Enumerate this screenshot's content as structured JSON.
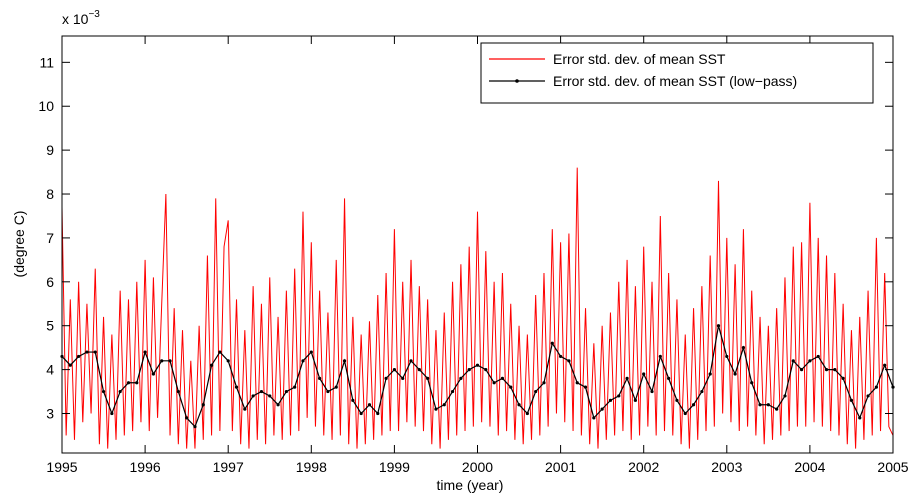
{
  "chart_data": {
    "type": "line",
    "xlabel": "time (year)",
    "ylabel": "(degree C)",
    "y_multiplier": {
      "base": "x 10",
      "exponent": "−3"
    },
    "xlim": [
      1995,
      2005
    ],
    "xticks": [
      1995,
      1996,
      1997,
      1998,
      1999,
      2000,
      2001,
      2002,
      2003,
      2004,
      2005
    ],
    "ylim": [
      2.1,
      11.6
    ],
    "yticks": [
      3,
      4,
      5,
      6,
      7,
      8,
      9,
      10,
      11
    ],
    "grid": false,
    "legend": "northeast",
    "series": [
      {
        "name": "Error std. dev. of mean SST",
        "color": "#ff0000",
        "marker": false,
        "x": [
          1995,
          1995.05,
          1995.1,
          1995.15,
          1995.2,
          1995.25,
          1995.3,
          1995.35,
          1995.4,
          1995.45,
          1995.5,
          1995.55,
          1995.6,
          1995.65,
          1995.7,
          1995.75,
          1995.8,
          1995.85,
          1995.9,
          1995.95,
          1996,
          1996.05,
          1996.1,
          1996.15,
          1996.2,
          1996.25,
          1996.3,
          1996.35,
          1996.4,
          1996.45,
          1996.5,
          1996.55,
          1996.6,
          1996.65,
          1996.7,
          1996.75,
          1996.8,
          1996.85,
          1996.9,
          1996.95,
          1997,
          1997.05,
          1997.1,
          1997.15,
          1997.2,
          1997.25,
          1997.3,
          1997.35,
          1997.4,
          1997.45,
          1997.5,
          1997.55,
          1997.6,
          1997.65,
          1997.7,
          1997.75,
          1997.8,
          1997.85,
          1997.9,
          1997.95,
          1998,
          1998.05,
          1998.1,
          1998.15,
          1998.2,
          1998.25,
          1998.3,
          1998.35,
          1998.4,
          1998.45,
          1998.5,
          1998.55,
          1998.6,
          1998.65,
          1998.7,
          1998.75,
          1998.8,
          1998.85,
          1998.9,
          1998.95,
          1999,
          1999.05,
          1999.1,
          1999.15,
          1999.2,
          1999.25,
          1999.3,
          1999.35,
          1999.4,
          1999.45,
          1999.5,
          1999.55,
          1999.6,
          1999.65,
          1999.7,
          1999.75,
          1999.8,
          1999.85,
          1999.9,
          1999.95,
          2000,
          2000.05,
          2000.1,
          2000.15,
          2000.2,
          2000.25,
          2000.3,
          2000.35,
          2000.4,
          2000.45,
          2000.5,
          2000.55,
          2000.6,
          2000.65,
          2000.7,
          2000.75,
          2000.8,
          2000.85,
          2000.9,
          2000.95,
          2001,
          2001.05,
          2001.1,
          2001.15,
          2001.2,
          2001.25,
          2001.3,
          2001.35,
          2001.4,
          2001.45,
          2001.5,
          2001.55,
          2001.6,
          2001.65,
          2001.7,
          2001.75,
          2001.8,
          2001.85,
          2001.9,
          2001.95,
          2002,
          2002.05,
          2002.1,
          2002.15,
          2002.2,
          2002.25,
          2002.3,
          2002.35,
          2002.4,
          2002.45,
          2002.5,
          2002.55,
          2002.6,
          2002.65,
          2002.7,
          2002.75,
          2002.8,
          2002.85,
          2002.9,
          2002.95,
          2003,
          2003.05,
          2003.1,
          2003.15,
          2003.2,
          2003.25,
          2003.3,
          2003.35,
          2003.4,
          2003.45,
          2003.5,
          2003.55,
          2003.6,
          2003.65,
          2003.7,
          2003.75,
          2003.8,
          2003.85,
          2003.9,
          2003.95,
          2004,
          2004.05,
          2004.1,
          2004.15,
          2004.2,
          2004.25,
          2004.3,
          2004.35,
          2004.4,
          2004.45,
          2004.5,
          2004.55,
          2004.6,
          2004.65,
          2004.7,
          2004.75,
          2004.8,
          2004.85,
          2004.9,
          2004.95,
          2005
        ],
        "values": [
          7.7,
          2.5,
          5.6,
          2.4,
          6.0,
          2.8,
          5.5,
          3.0,
          6.3,
          2.3,
          5.2,
          2.2,
          4.8,
          2.4,
          5.8,
          2.5,
          5.6,
          2.6,
          6.0,
          2.8,
          6.5,
          2.6,
          6.1,
          2.9,
          5.5,
          8.0,
          2.5,
          5.4,
          2.3,
          4.9,
          2.2,
          4.2,
          2.2,
          5.0,
          2.4,
          6.6,
          2.5,
          7.9,
          2.6,
          6.8,
          7.4,
          2.6,
          5.6,
          2.3,
          4.9,
          2.2,
          5.9,
          2.4,
          5.5,
          2.3,
          6.1,
          2.5,
          5.2,
          2.4,
          5.8,
          2.5,
          6.3,
          2.6,
          7.6,
          2.9,
          6.9,
          2.7,
          5.8,
          2.5,
          5.3,
          2.4,
          6.5,
          2.5,
          7.9,
          2.3,
          5.2,
          2.2,
          4.8,
          2.3,
          5.1,
          2.4,
          5.7,
          2.5,
          6.2,
          2.6,
          7.2,
          2.6,
          6.0,
          2.8,
          6.5,
          2.7,
          5.9,
          2.6,
          5.6,
          2.3,
          4.9,
          2.2,
          5.3,
          2.4,
          6.0,
          2.5,
          6.4,
          2.6,
          6.8,
          2.7,
          7.6,
          2.8,
          6.7,
          2.7,
          6.0,
          2.5,
          6.2,
          2.6,
          5.5,
          2.4,
          5.0,
          2.3,
          4.8,
          2.4,
          5.7,
          2.5,
          6.2,
          2.7,
          7.2,
          3.0,
          6.9,
          2.8,
          7.1,
          2.6,
          8.6,
          2.5,
          5.4,
          2.3,
          4.6,
          2.2,
          5.0,
          2.4,
          5.3,
          2.5,
          6.0,
          2.6,
          6.5,
          2.4,
          5.9,
          2.5,
          6.8,
          2.7,
          6.0,
          2.5,
          7.5,
          2.6,
          6.2,
          2.5,
          5.6,
          2.3,
          4.8,
          2.2,
          5.4,
          2.4,
          5.9,
          2.6,
          6.6,
          2.7,
          8.3,
          3.0,
          7.0,
          2.8,
          6.4,
          2.6,
          7.2,
          2.7,
          5.8,
          2.5,
          5.2,
          2.3,
          5.0,
          2.4,
          5.4,
          2.5,
          6.1,
          2.6,
          6.8,
          2.7,
          6.9,
          2.7,
          7.8,
          2.8,
          7.0,
          2.7,
          6.6,
          2.6,
          6.2,
          2.5,
          5.5,
          2.3,
          4.9,
          2.2,
          5.2,
          2.4,
          5.8,
          2.5,
          7.0,
          2.6,
          6.2,
          2.7,
          2.5
        ]
      },
      {
        "name": "Error std. dev. of mean SST (low−pass)",
        "color": "#000000",
        "marker": true,
        "x": [
          1995,
          1995.1,
          1995.2,
          1995.3,
          1995.4,
          1995.5,
          1995.6,
          1995.7,
          1995.8,
          1995.9,
          1996,
          1996.1,
          1996.2,
          1996.3,
          1996.4,
          1996.5,
          1996.6,
          1996.7,
          1996.8,
          1996.9,
          1997,
          1997.1,
          1997.2,
          1997.3,
          1997.4,
          1997.5,
          1997.6,
          1997.7,
          1997.8,
          1997.9,
          1998,
          1998.1,
          1998.2,
          1998.3,
          1998.4,
          1998.5,
          1998.6,
          1998.7,
          1998.8,
          1998.9,
          1999,
          1999.1,
          1999.2,
          1999.3,
          1999.4,
          1999.5,
          1999.6,
          1999.7,
          1999.8,
          1999.9,
          2000,
          2000.1,
          2000.2,
          2000.3,
          2000.4,
          2000.5,
          2000.6,
          2000.7,
          2000.8,
          2000.9,
          2001,
          2001.1,
          2001.2,
          2001.3,
          2001.4,
          2001.5,
          2001.6,
          2001.7,
          2001.8,
          2001.9,
          2002,
          2002.1,
          2002.2,
          2002.3,
          2002.4,
          2002.5,
          2002.6,
          2002.7,
          2002.8,
          2002.9,
          2003,
          2003.1,
          2003.2,
          2003.3,
          2003.4,
          2003.5,
          2003.6,
          2003.7,
          2003.8,
          2003.9,
          2004,
          2004.1,
          2004.2,
          2004.3,
          2004.4,
          2004.5,
          2004.6,
          2004.7,
          2004.8,
          2004.9,
          2005
        ],
        "values": [
          4.3,
          4.1,
          4.3,
          4.4,
          4.4,
          3.5,
          3.0,
          3.5,
          3.7,
          3.7,
          4.4,
          3.9,
          4.2,
          4.2,
          3.5,
          2.9,
          2.7,
          3.2,
          4.1,
          4.4,
          4.2,
          3.6,
          3.1,
          3.4,
          3.5,
          3.4,
          3.2,
          3.5,
          3.6,
          4.2,
          4.4,
          3.8,
          3.5,
          3.6,
          4.2,
          3.3,
          3.0,
          3.2,
          3.0,
          3.8,
          4.0,
          3.8,
          4.2,
          4.0,
          3.8,
          3.1,
          3.2,
          3.5,
          3.8,
          4.0,
          4.1,
          4.0,
          3.7,
          3.8,
          3.6,
          3.2,
          3.0,
          3.5,
          3.7,
          4.6,
          4.3,
          4.2,
          3.7,
          3.6,
          2.9,
          3.1,
          3.3,
          3.4,
          3.8,
          3.3,
          3.9,
          3.5,
          4.3,
          3.8,
          3.3,
          3.0,
          3.2,
          3.5,
          3.9,
          5.0,
          4.3,
          3.9,
          4.5,
          3.7,
          3.2,
          3.2,
          3.1,
          3.4,
          4.2,
          4.0,
          4.2,
          4.3,
          4.0,
          4.0,
          3.8,
          3.3,
          2.9,
          3.4,
          3.6,
          4.1,
          3.6
        ]
      }
    ]
  }
}
